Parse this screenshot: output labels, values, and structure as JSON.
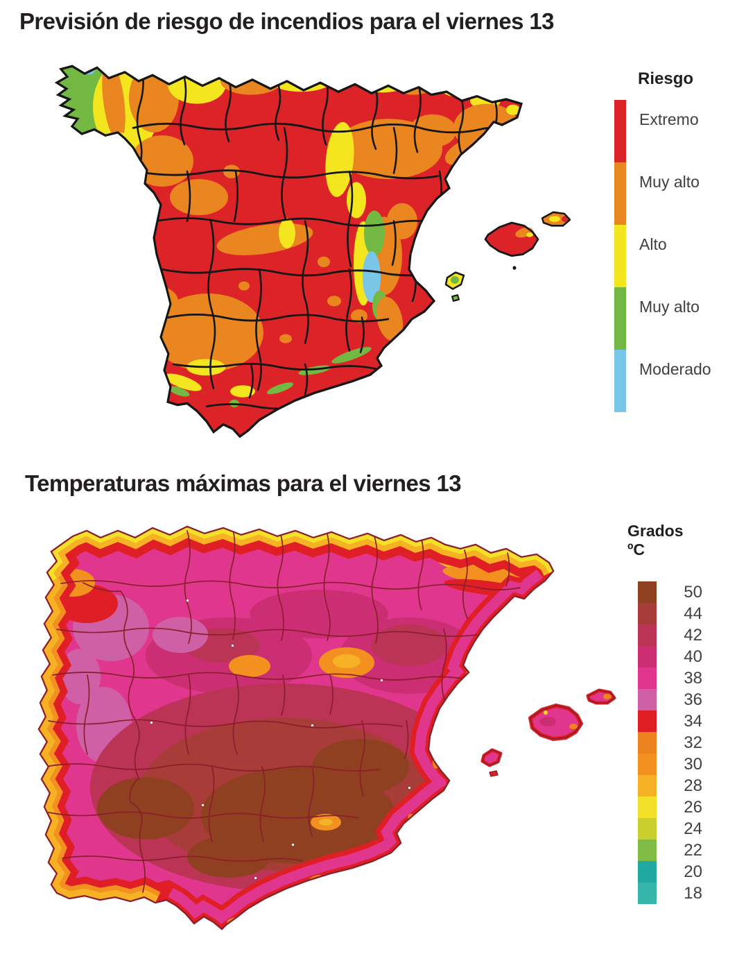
{
  "risk_map": {
    "title": "Previsión de riesgo de incendios para el viernes 13",
    "legend": {
      "header": "Riesgo",
      "items": [
        {
          "label": "Extremo",
          "color": "#DC2428"
        },
        {
          "label": "Muy alto",
          "color": "#E9861F"
        },
        {
          "label": "Alto",
          "color": "#F3E51E"
        },
        {
          "label": "Muy alto",
          "color": "#74B844"
        },
        {
          "label": "Moderado",
          "color": "#7AC6E8"
        }
      ]
    }
  },
  "temperature_map": {
    "title": "Temperaturas máximas para el viernes 13",
    "legend": {
      "header": "Grados ºC",
      "items": [
        {
          "label": "50",
          "color": "#8E4020"
        },
        {
          "label": "44",
          "color": "#A73C39"
        },
        {
          "label": "42",
          "color": "#BB3456"
        },
        {
          "label": "40",
          "color": "#CB2E72"
        },
        {
          "label": "38",
          "color": "#E0368D"
        },
        {
          "label": "36",
          "color": "#CF60A5"
        },
        {
          "label": "34",
          "color": "#DF1F25"
        },
        {
          "label": "32",
          "color": "#EC831F"
        },
        {
          "label": "30",
          "color": "#F29120"
        },
        {
          "label": "28",
          "color": "#F7B124"
        },
        {
          "label": "26",
          "color": "#F2E029"
        },
        {
          "label": "24",
          "color": "#C9CF2D"
        },
        {
          "label": "22",
          "color": "#7FBB45"
        },
        {
          "label": "20",
          "color": "#1FA9A0"
        },
        {
          "label": "18",
          "color": "#36B5AB"
        }
      ]
    }
  }
}
